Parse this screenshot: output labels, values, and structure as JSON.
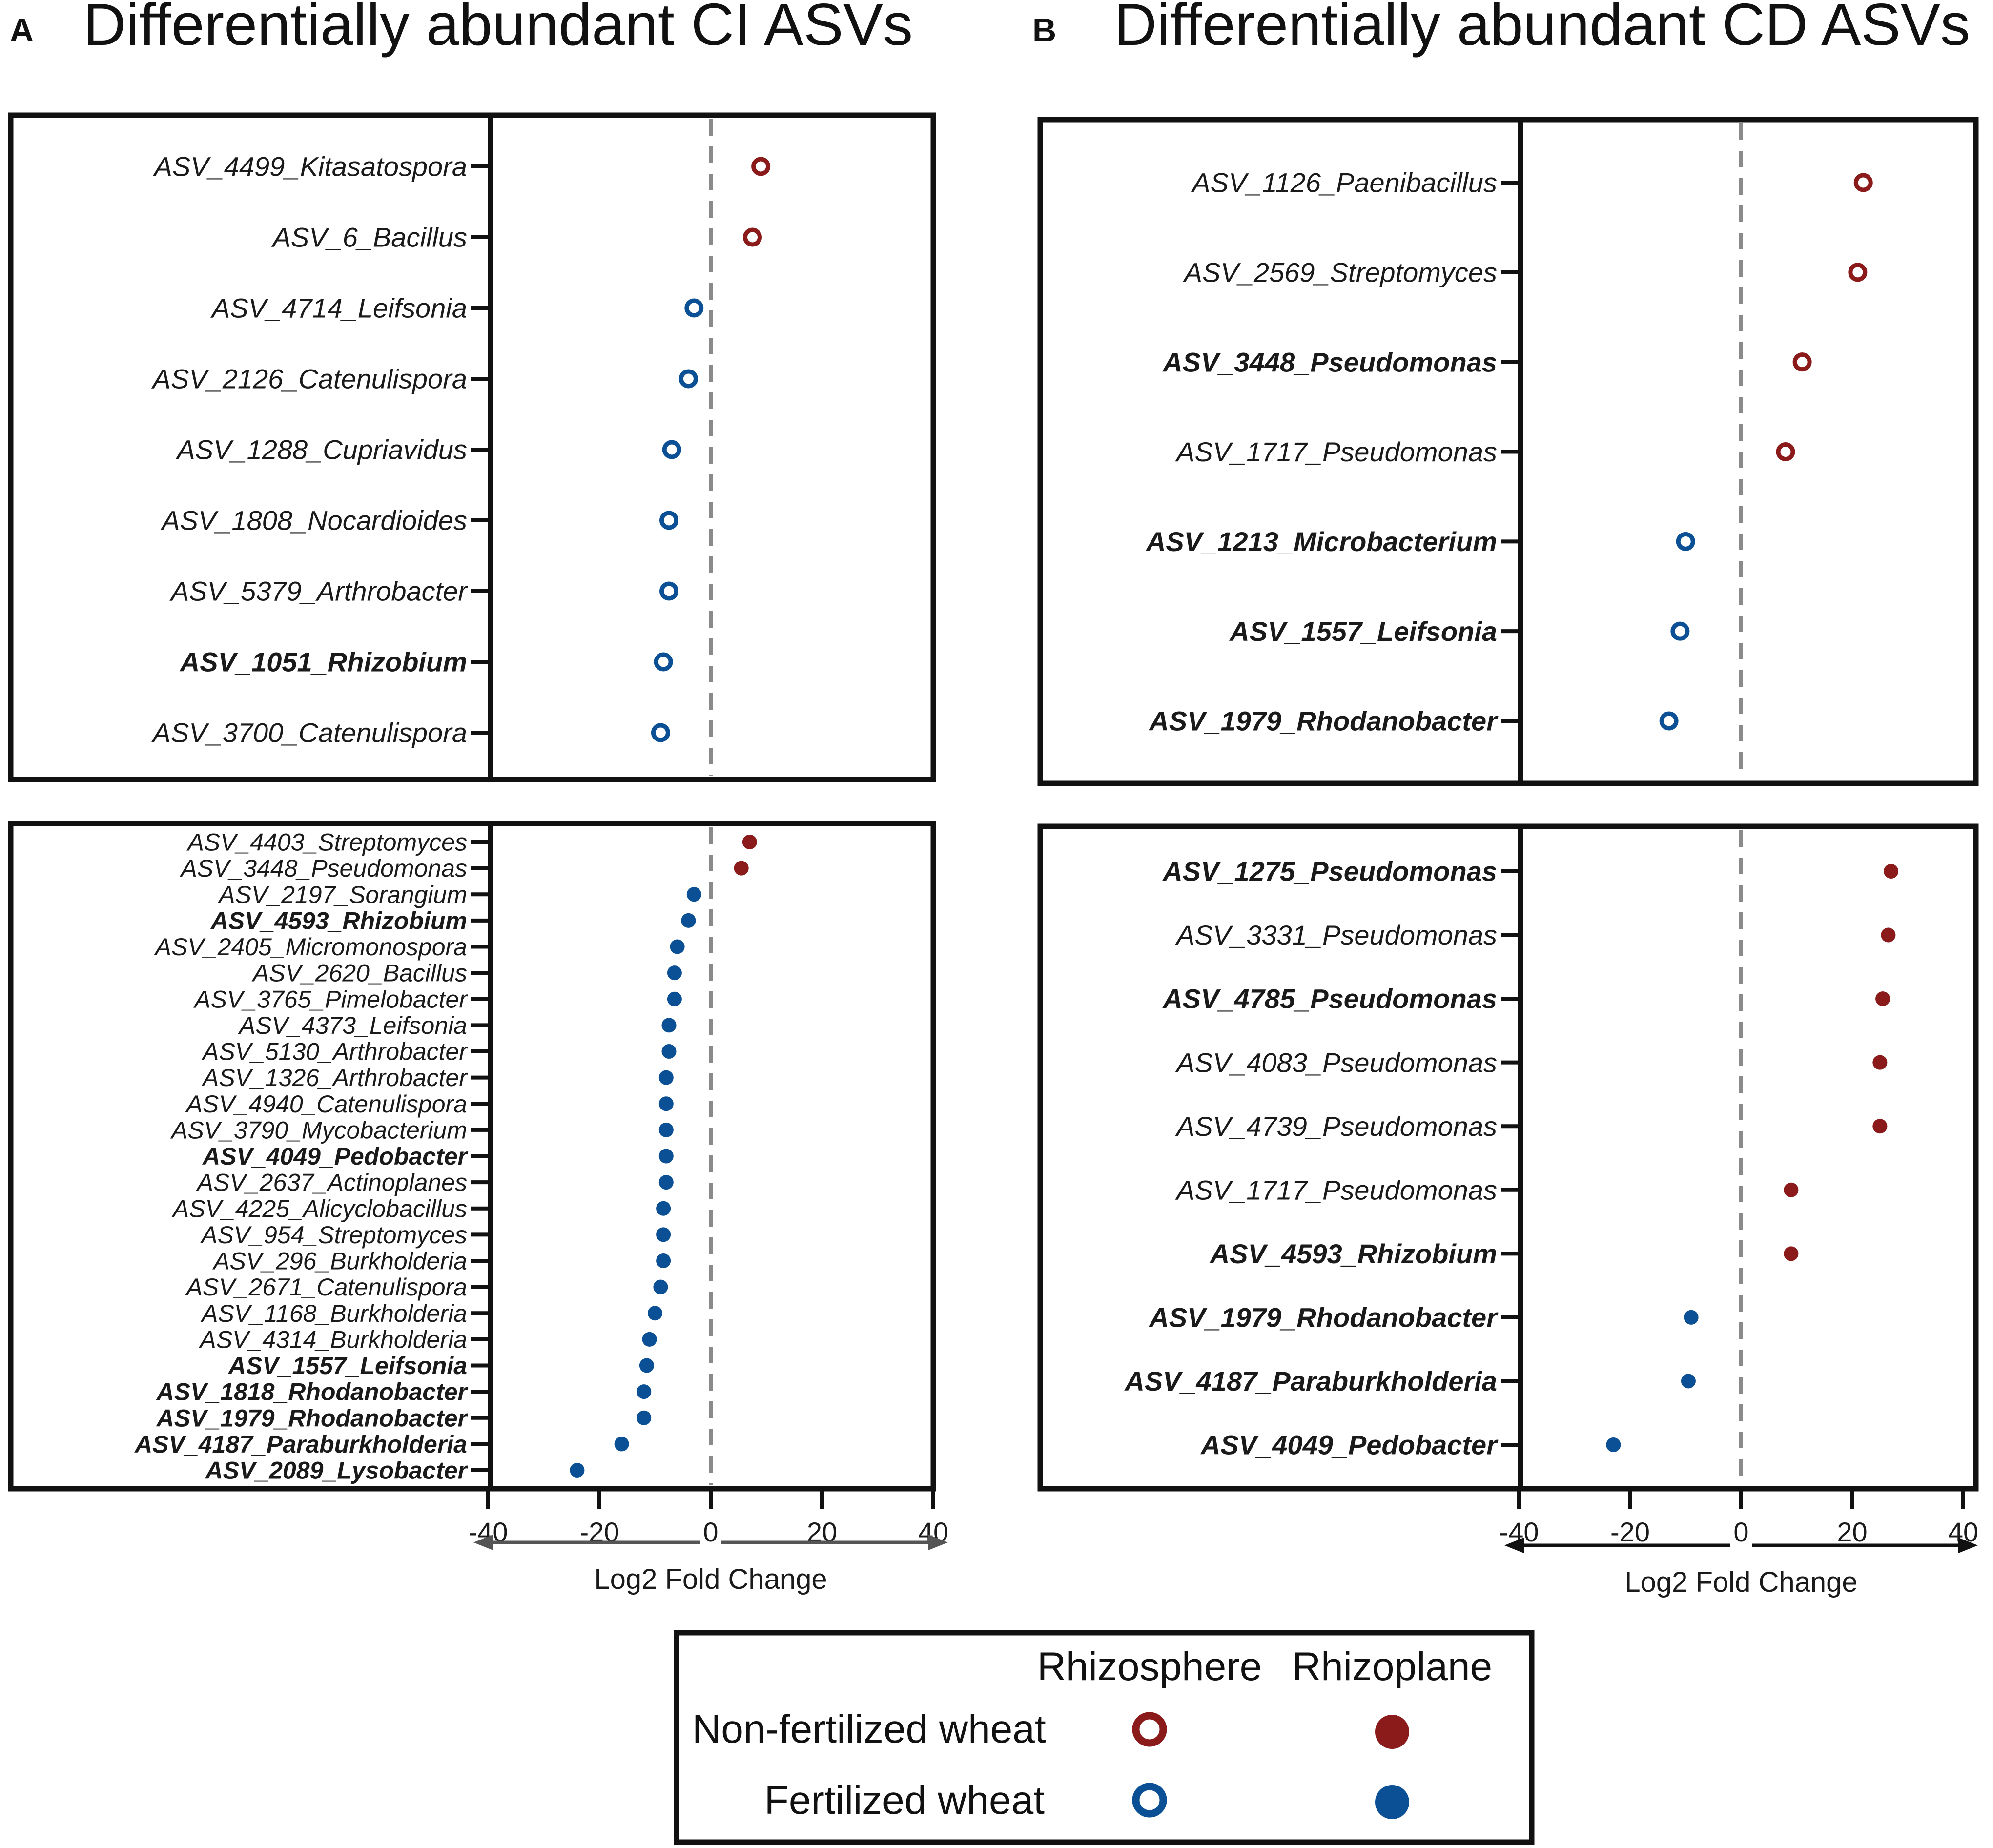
{
  "colors": {
    "nonfert": "#8b1a1a",
    "fert": "#0b4f95",
    "frame": "#111111",
    "zero_line": "#8a8a8a",
    "axis_arrow_A": "#555555",
    "axis_arrow_B": "#111111"
  },
  "panels": [
    {
      "letter": "A",
      "title": "Differentially abundant CI ASVs",
      "xlabel": "Log2 Fold Change",
      "xlim": [
        -40,
        40
      ],
      "ticks": [
        "-40",
        "-20",
        "0",
        "20",
        "40"
      ]
    },
    {
      "letter": "B",
      "title": "Differentially abundant CD ASVs",
      "xlabel": "Log2 Fold Change",
      "xlim": [
        -40,
        40
      ],
      "ticks": [
        "-40",
        "-20",
        "0",
        "20",
        "40"
      ]
    }
  ],
  "legend": {
    "col_rhizosphere": "Rhizosphere",
    "col_rhizoplane": "Rhizoplane",
    "row_nonfert": "Non-fertilized wheat",
    "row_fert": "Fertilized wheat"
  },
  "chart_data": [
    {
      "type": "scatter",
      "title": "Differentially abundant CI ASVs",
      "subplot": "A-rhizosphere",
      "xlabel": "Log2 Fold Change",
      "xlim": [
        -40,
        40
      ],
      "marker": "open",
      "rows": [
        {
          "label": "ASV_4499_Kitasatospora",
          "value": 9,
          "group": "nonfert",
          "bold": false
        },
        {
          "label": "ASV_6_Bacillus",
          "value": 7.5,
          "group": "nonfert",
          "bold": false
        },
        {
          "label": "ASV_4714_Leifsonia",
          "value": -3,
          "group": "fert",
          "bold": false
        },
        {
          "label": "ASV_2126_Catenulispora",
          "value": -4,
          "group": "fert",
          "bold": false
        },
        {
          "label": "ASV_1288_Cupriavidus",
          "value": -7,
          "group": "fert",
          "bold": false
        },
        {
          "label": "ASV_1808_Nocardioides",
          "value": -7.5,
          "group": "fert",
          "bold": false
        },
        {
          "label": "ASV_5379_Arthrobacter",
          "value": -7.5,
          "group": "fert",
          "bold": false
        },
        {
          "label": "ASV_1051_Rhizobium",
          "value": -8.5,
          "group": "fert",
          "bold": true
        },
        {
          "label": "ASV_3700_Catenulispora",
          "value": -9,
          "group": "fert",
          "bold": false
        }
      ]
    },
    {
      "type": "scatter",
      "title": "Differentially abundant CI ASVs",
      "subplot": "A-rhizoplane",
      "xlabel": "Log2 Fold Change",
      "xlim": [
        -40,
        40
      ],
      "marker": "filled",
      "rows": [
        {
          "label": "ASV_4403_Streptomyces",
          "value": 7,
          "group": "nonfert",
          "bold": false
        },
        {
          "label": "ASV_3448_Pseudomonas",
          "value": 5.5,
          "group": "nonfert",
          "bold": false
        },
        {
          "label": "ASV_2197_Sorangium",
          "value": -3,
          "group": "fert",
          "bold": false
        },
        {
          "label": "ASV_4593_Rhizobium",
          "value": -4,
          "group": "fert",
          "bold": true
        },
        {
          "label": "ASV_2405_Micromonospora",
          "value": -6,
          "group": "fert",
          "bold": false
        },
        {
          "label": "ASV_2620_Bacillus",
          "value": -6.5,
          "group": "fert",
          "bold": false
        },
        {
          "label": "ASV_3765_Pimelobacter",
          "value": -6.5,
          "group": "fert",
          "bold": false
        },
        {
          "label": "ASV_4373_Leifsonia",
          "value": -7.5,
          "group": "fert",
          "bold": false
        },
        {
          "label": "ASV_5130_Arthrobacter",
          "value": -7.5,
          "group": "fert",
          "bold": false
        },
        {
          "label": "ASV_1326_Arthrobacter",
          "value": -8,
          "group": "fert",
          "bold": false
        },
        {
          "label": "ASV_4940_Catenulispora",
          "value": -8,
          "group": "fert",
          "bold": false
        },
        {
          "label": "ASV_3790_Mycobacterium",
          "value": -8,
          "group": "fert",
          "bold": false
        },
        {
          "label": "ASV_4049_Pedobacter",
          "value": -8,
          "group": "fert",
          "bold": true
        },
        {
          "label": "ASV_2637_Actinoplanes",
          "value": -8,
          "group": "fert",
          "bold": false
        },
        {
          "label": "ASV_4225_Alicyclobacillus",
          "value": -8.5,
          "group": "fert",
          "bold": false
        },
        {
          "label": "ASV_954_Streptomyces",
          "value": -8.5,
          "group": "fert",
          "bold": false
        },
        {
          "label": "ASV_296_Burkholderia",
          "value": -8.5,
          "group": "fert",
          "bold": false
        },
        {
          "label": "ASV_2671_Catenulispora",
          "value": -9,
          "group": "fert",
          "bold": false
        },
        {
          "label": "ASV_1168_Burkholderia",
          "value": -10,
          "group": "fert",
          "bold": false
        },
        {
          "label": "ASV_4314_Burkholderia",
          "value": -11,
          "group": "fert",
          "bold": false
        },
        {
          "label": "ASV_1557_Leifsonia",
          "value": -11.5,
          "group": "fert",
          "bold": true
        },
        {
          "label": "ASV_1818_Rhodanobacter",
          "value": -12,
          "group": "fert",
          "bold": true
        },
        {
          "label": "ASV_1979_Rhodanobacter",
          "value": -12,
          "group": "fert",
          "bold": true
        },
        {
          "label": "ASV_4187_Paraburkholderia",
          "value": -16,
          "group": "fert",
          "bold": true
        },
        {
          "label": "ASV_2089_Lysobacter",
          "value": -24,
          "group": "fert",
          "bold": true
        }
      ]
    },
    {
      "type": "scatter",
      "title": "Differentially abundant CD ASVs",
      "subplot": "B-rhizosphere",
      "xlabel": "Log2 Fold Change",
      "xlim": [
        -40,
        40
      ],
      "marker": "open",
      "rows": [
        {
          "label": "ASV_1126_Paenibacillus",
          "value": 22,
          "group": "nonfert",
          "bold": false
        },
        {
          "label": "ASV_2569_Streptomyces",
          "value": 21,
          "group": "nonfert",
          "bold": false
        },
        {
          "label": "ASV_3448_Pseudomonas",
          "value": 11,
          "group": "nonfert",
          "bold": true
        },
        {
          "label": "ASV_1717_Pseudomonas",
          "value": 8,
          "group": "nonfert",
          "bold": false
        },
        {
          "label": "ASV_1213_Microbacterium",
          "value": -10,
          "group": "fert",
          "bold": true
        },
        {
          "label": "ASV_1557_Leifsonia",
          "value": -11,
          "group": "fert",
          "bold": true
        },
        {
          "label": "ASV_1979_Rhodanobacter",
          "value": -13,
          "group": "fert",
          "bold": true
        }
      ]
    },
    {
      "type": "scatter",
      "title": "Differentially abundant CD ASVs",
      "subplot": "B-rhizoplane",
      "xlabel": "Log2 Fold Change",
      "xlim": [
        -40,
        40
      ],
      "marker": "filled",
      "rows": [
        {
          "label": "ASV_1275_Pseudomonas",
          "value": 27,
          "group": "nonfert",
          "bold": true
        },
        {
          "label": "ASV_3331_Pseudomonas",
          "value": 26.5,
          "group": "nonfert",
          "bold": false
        },
        {
          "label": "ASV_4785_Pseudomonas",
          "value": 25.5,
          "group": "nonfert",
          "bold": true
        },
        {
          "label": "ASV_4083_Pseudomonas",
          "value": 25,
          "group": "nonfert",
          "bold": false
        },
        {
          "label": "ASV_4739_Pseudomonas",
          "value": 25,
          "group": "nonfert",
          "bold": false
        },
        {
          "label": "ASV_1717_Pseudomonas",
          "value": 9,
          "group": "nonfert",
          "bold": false
        },
        {
          "label": "ASV_4593_Rhizobium",
          "value": 9,
          "group": "nonfert",
          "bold": true
        },
        {
          "label": "ASV_1979_Rhodanobacter",
          "value": -9,
          "group": "fert",
          "bold": true
        },
        {
          "label": "ASV_4187_Paraburkholderia",
          "value": -9.5,
          "group": "fert",
          "bold": true
        },
        {
          "label": "ASV_4049_Pedobacter",
          "value": -23,
          "group": "fert",
          "bold": true
        }
      ]
    }
  ]
}
